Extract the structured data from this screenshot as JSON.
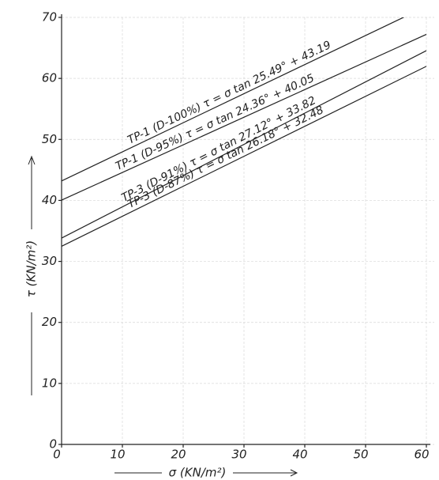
{
  "chart_data": {
    "type": "line",
    "x": [
      0,
      60
    ],
    "series": [
      {
        "name": "TP-1 (D-100%) τ = σ tan 25.49° + 43.19",
        "color": "#222222",
        "values": [
          43.19,
          71.8
        ]
      },
      {
        "name": "TP-1 (D-95%) τ = σ tan 24.36° + 40.05",
        "color": "#222222",
        "values": [
          40.05,
          67.22
        ]
      },
      {
        "name": "TP-3 (D-91%) τ = σ tan 27.12° + 33.82",
        "color": "#222222",
        "values": [
          33.82,
          64.55
        ]
      },
      {
        "name": "TP-3 (D-87%) τ = σ tan 26.18° + 32.48",
        "color": "#222222",
        "values": [
          32.48,
          61.98
        ]
      }
    ],
    "xlabel": "σ (KN/m²)",
    "ylabel": "τ (KN/m²)",
    "xlim": [
      0,
      60
    ],
    "ylim": [
      0,
      70
    ],
    "xticks": [
      0,
      10,
      20,
      30,
      40,
      50,
      60
    ],
    "yticks": [
      0,
      10,
      20,
      30,
      40,
      50,
      60,
      70
    ],
    "grid": true
  }
}
